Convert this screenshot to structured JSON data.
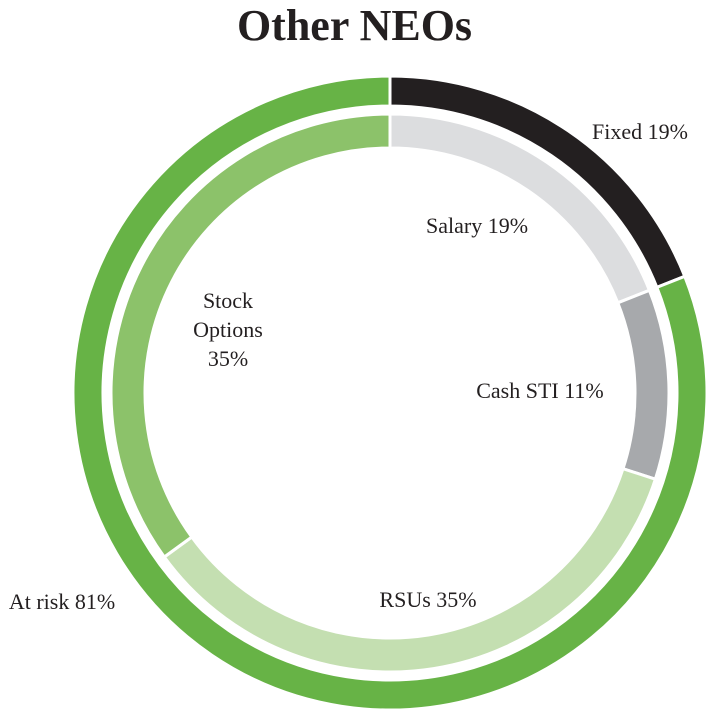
{
  "chart_data": {
    "type": "pie",
    "title": "Other NEOs",
    "rings": [
      {
        "name": "",
        "slices": [
          {
            "label": "Fixed 19%",
            "value": 19,
            "color": "#231f20"
          },
          {
            "label": "At risk 81%",
            "value": 81,
            "color": "#67b346"
          }
        ]
      },
      {
        "name": "",
        "slices": [
          {
            "label": "Salary 19%",
            "value": 19,
            "color": "#dcdddf"
          },
          {
            "label": "Cash STI 11%",
            "value": 11,
            "color": "#a7a9ac"
          },
          {
            "label": "RSUs 35%",
            "value": 35,
            "color": "#c4dfb1"
          },
          {
            "label": "Stock Options 35%",
            "value": 35,
            "color": "#8cc26a"
          }
        ]
      }
    ]
  }
}
